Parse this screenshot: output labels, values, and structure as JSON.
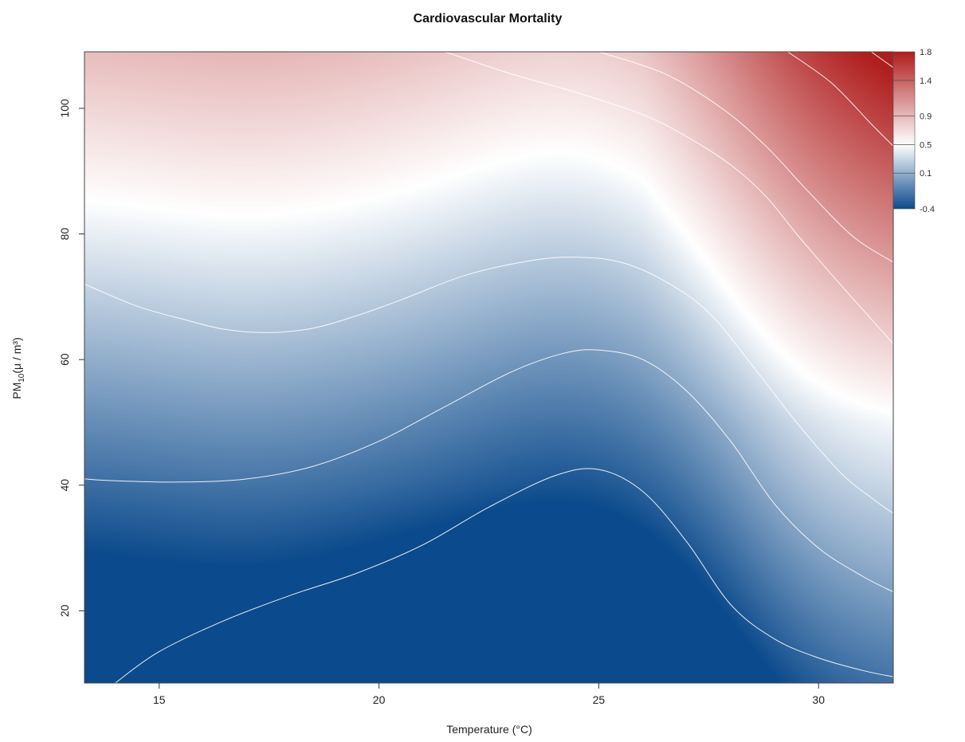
{
  "chart_data": {
    "type": "heatmap",
    "title": "Cardiovascular Mortality",
    "xlabel": "Temperature (°C)",
    "ylabel": {
      "main": "PM",
      "sub": "10",
      "unit": "(μ / m³)"
    },
    "xlim": [
      13.3,
      31.7
    ],
    "ylim": [
      8.5,
      109
    ],
    "x_ticks": [
      15,
      20,
      25,
      30
    ],
    "y_ticks": [
      20,
      40,
      60,
      80,
      100
    ],
    "x_tick_labels": [
      "15",
      "20",
      "25",
      "30"
    ],
    "y_tick_labels": [
      "20",
      "40",
      "60",
      "80",
      "100"
    ],
    "z_range": [
      -0.4,
      1.8
    ],
    "color_scale": {
      "low": "#0b4a8c",
      "mid": "#ffffff",
      "high": "#b01d1d",
      "mid_value": 0.5
    },
    "legend": {
      "placement": "right",
      "breaks": [
        -0.4,
        0.1,
        0.5,
        0.9,
        1.4,
        1.8
      ],
      "labels": [
        "-0.4",
        "0.1",
        "0.5",
        "0.9",
        "1.4",
        "1.8"
      ]
    },
    "contour_lines": [
      {
        "points": [
          [
            14.0,
            8.5
          ],
          [
            15.0,
            13.5
          ],
          [
            16.5,
            18.5
          ],
          [
            18.0,
            22.5
          ],
          [
            19.5,
            26.0
          ],
          [
            21.0,
            30.5
          ],
          [
            22.5,
            36.5
          ],
          [
            24.0,
            41.5
          ],
          [
            25.0,
            42.5
          ],
          [
            26.0,
            39.0
          ],
          [
            27.0,
            31.0
          ],
          [
            28.0,
            21.0
          ],
          [
            29.0,
            15.5
          ],
          [
            30.0,
            12.5
          ],
          [
            31.0,
            10.5
          ],
          [
            31.7,
            9.5
          ]
        ]
      },
      {
        "points": [
          [
            13.3,
            41.0
          ],
          [
            14.0,
            40.7
          ],
          [
            15.5,
            40.5
          ],
          [
            17.0,
            41.0
          ],
          [
            18.5,
            43.0
          ],
          [
            20.0,
            47.0
          ],
          [
            21.5,
            52.5
          ],
          [
            23.0,
            58.0
          ],
          [
            24.2,
            61.0
          ],
          [
            25.0,
            61.5
          ],
          [
            26.0,
            60.0
          ],
          [
            27.0,
            55.0
          ],
          [
            28.0,
            47.0
          ],
          [
            29.0,
            37.0
          ],
          [
            30.0,
            30.0
          ],
          [
            31.0,
            25.5
          ],
          [
            31.7,
            23.0
          ]
        ]
      },
      {
        "points": [
          [
            13.3,
            72.0
          ],
          [
            14.5,
            68.5
          ],
          [
            15.5,
            66.5
          ],
          [
            16.5,
            64.8
          ],
          [
            17.5,
            64.3
          ],
          [
            18.5,
            65.0
          ],
          [
            19.5,
            67.0
          ],
          [
            20.5,
            69.5
          ],
          [
            22.0,
            73.5
          ],
          [
            23.5,
            75.8
          ],
          [
            24.5,
            76.3
          ],
          [
            25.5,
            75.5
          ],
          [
            26.5,
            72.5
          ],
          [
            27.5,
            67.5
          ],
          [
            28.5,
            59.0
          ],
          [
            29.5,
            50.0
          ],
          [
            30.5,
            42.0
          ],
          [
            31.2,
            38.0
          ],
          [
            31.7,
            35.5
          ]
        ]
      },
      {
        "points": [
          [
            21.5,
            109.0
          ],
          [
            23.0,
            105.5
          ],
          [
            24.5,
            102.5
          ],
          [
            26.0,
            99.0
          ],
          [
            27.0,
            95.5
          ],
          [
            28.0,
            91.0
          ],
          [
            28.8,
            86.0
          ],
          [
            29.5,
            80.0
          ],
          [
            30.3,
            73.5
          ],
          [
            31.0,
            68.0
          ],
          [
            31.7,
            62.5
          ]
        ]
      },
      {
        "points": [
          [
            25.0,
            109.0
          ],
          [
            26.5,
            105.5
          ],
          [
            27.8,
            100.0
          ],
          [
            28.8,
            94.0
          ],
          [
            29.8,
            86.5
          ],
          [
            30.8,
            79.5
          ],
          [
            31.7,
            75.5
          ]
        ]
      },
      {
        "points": [
          [
            29.3,
            109.0
          ],
          [
            30.3,
            104.0
          ],
          [
            31.2,
            97.5
          ],
          [
            31.7,
            94.0
          ]
        ]
      },
      {
        "points": [
          [
            31.2,
            109.0
          ],
          [
            31.7,
            106.5
          ]
        ]
      }
    ]
  }
}
